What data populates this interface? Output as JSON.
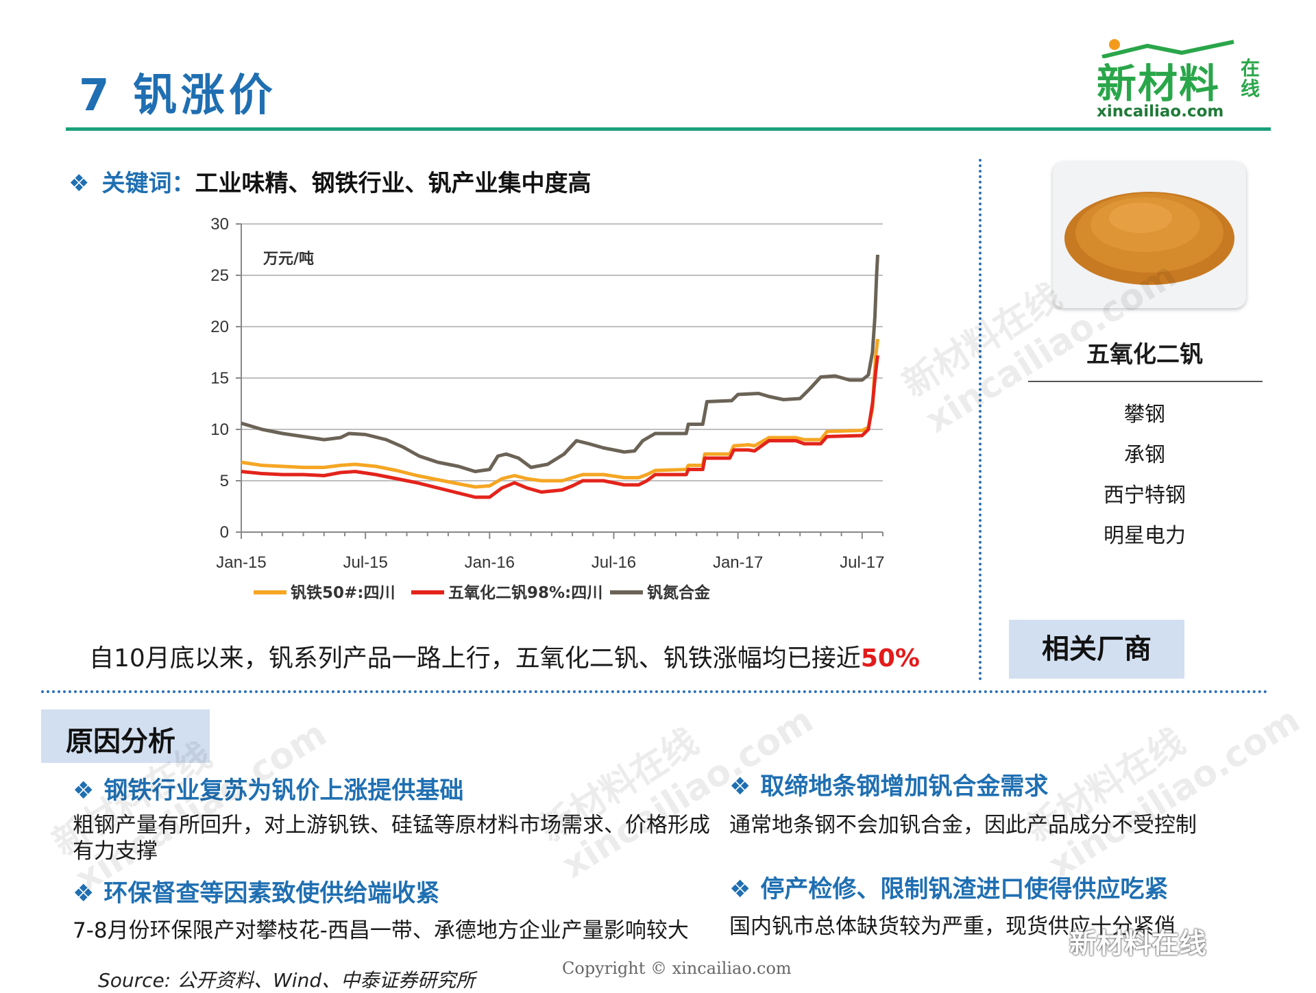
{
  "header": {
    "title": "7 钒涨价",
    "logo_main": "新材料",
    "logo_side": "在线",
    "logo_url": "xincailiao.com"
  },
  "keywords": {
    "bullet": "❖",
    "label": "关键词：",
    "text": "工业味精、钢铁行业、钒产业集中度高"
  },
  "caption": {
    "text": "自10月底以来，钒系列产品一路上行，五氧化二钒、钒铁涨幅均已接近",
    "highlight": "50%"
  },
  "product": {
    "name": "五氧化二钒",
    "makers": [
      "攀钢",
      "承钢",
      "西宁特钢",
      "明星电力"
    ],
    "makers_tag": "相关厂商"
  },
  "reasons": {
    "tag": "原因分析",
    "bullet": "❖",
    "items": [
      {
        "heading": "钢铁行业复苏为钒价上涨提供基础",
        "body": "粗钢产量有所回升，对上游钒铁、硅锰等原材料市场需求、价格形成有力支撑"
      },
      {
        "heading": "环保督查等因素致使供给端收紧",
        "body": "7-8月份环保限产对攀枝花-西昌一带、承德地方企业产量影响较大"
      },
      {
        "heading": "取缔地条钢增加钒合金需求",
        "body": "通常地条钢不会加钒合金，因此产品成分不受控制"
      },
      {
        "heading": "停产检修、限制钒渣进口使得供应吃紧",
        "body": "国内钒市总体缺货较为严重，现货供应十分紧俏"
      }
    ]
  },
  "footer": {
    "source": "Source: 公开资料、Wind、中泰证券研究所",
    "copyright": "Copyright © xincailiao.com",
    "wechat": "新材料在线"
  },
  "watermark": {
    "line1": "新材料在线",
    "line2": "xincailiao.com"
  },
  "chart_data": {
    "type": "line",
    "unit_label": "万元/吨",
    "ylim": [
      0,
      30
    ],
    "yticks": [
      0,
      5,
      10,
      15,
      20,
      25,
      30
    ],
    "x_tick_labels": [
      "Jan-15",
      "Jul-15",
      "Jan-16",
      "Jul-16",
      "Jan-17",
      "Jul-17"
    ],
    "x_tick_months": [
      0,
      6,
      12,
      18,
      24,
      30
    ],
    "x_range_months": [
      0,
      31
    ],
    "grid": true,
    "legend_position": "bottom",
    "colors": {
      "ferrovanadium": "#f5a623",
      "v2o5": "#e3241b",
      "vn": "#6b6356"
    },
    "series": [
      {
        "name": "钒铁50#:四川",
        "color": "#f5a623",
        "points": [
          [
            0,
            6.8
          ],
          [
            1,
            6.5
          ],
          [
            2,
            6.4
          ],
          [
            3,
            6.3
          ],
          [
            4,
            6.3
          ],
          [
            4.8,
            6.5
          ],
          [
            5.5,
            6.6
          ],
          [
            6.5,
            6.4
          ],
          [
            7.5,
            6.0
          ],
          [
            8.5,
            5.5
          ],
          [
            9.5,
            5.1
          ],
          [
            10.5,
            4.7
          ],
          [
            11.3,
            4.4
          ],
          [
            12,
            4.5
          ],
          [
            12.6,
            5.2
          ],
          [
            13.2,
            5.5
          ],
          [
            13.8,
            5.2
          ],
          [
            14.5,
            5.0
          ],
          [
            15.5,
            5.0
          ],
          [
            16,
            5.3
          ],
          [
            16.5,
            5.6
          ],
          [
            17.5,
            5.6
          ],
          [
            18.5,
            5.3
          ],
          [
            19.2,
            5.3
          ],
          [
            19.6,
            5.6
          ],
          [
            20,
            6.0
          ],
          [
            21.5,
            6.1
          ],
          [
            21.6,
            6.5
          ],
          [
            22.3,
            6.5
          ],
          [
            22.4,
            7.6
          ],
          [
            23.6,
            7.6
          ],
          [
            23.8,
            8.4
          ],
          [
            24.5,
            8.5
          ],
          [
            24.8,
            8.4
          ],
          [
            25.5,
            9.2
          ],
          [
            26.8,
            9.2
          ],
          [
            27.2,
            9.0
          ],
          [
            28,
            9.0
          ],
          [
            28.3,
            9.8
          ],
          [
            30,
            9.9
          ],
          [
            30.3,
            10.2
          ],
          [
            30.5,
            12.0
          ],
          [
            30.65,
            17.0
          ],
          [
            30.75,
            18.8
          ]
        ]
      },
      {
        "name": "五氧化二钒98%:四川",
        "color": "#e3241b",
        "points": [
          [
            0,
            5.9
          ],
          [
            1,
            5.7
          ],
          [
            2,
            5.6
          ],
          [
            3,
            5.6
          ],
          [
            4,
            5.5
          ],
          [
            4.8,
            5.8
          ],
          [
            5.5,
            5.9
          ],
          [
            6.5,
            5.6
          ],
          [
            7.5,
            5.2
          ],
          [
            8.5,
            4.8
          ],
          [
            9.5,
            4.3
          ],
          [
            10.5,
            3.8
          ],
          [
            11.3,
            3.4
          ],
          [
            12,
            3.4
          ],
          [
            12.6,
            4.3
          ],
          [
            13.2,
            4.8
          ],
          [
            13.8,
            4.3
          ],
          [
            14.5,
            3.9
          ],
          [
            15.5,
            4.1
          ],
          [
            16,
            4.5
          ],
          [
            16.5,
            5.0
          ],
          [
            17.5,
            5.0
          ],
          [
            18.5,
            4.6
          ],
          [
            19.2,
            4.6
          ],
          [
            19.6,
            5.0
          ],
          [
            20,
            5.6
          ],
          [
            21.5,
            5.6
          ],
          [
            21.6,
            6.1
          ],
          [
            22.3,
            6.1
          ],
          [
            22.4,
            7.2
          ],
          [
            23.6,
            7.2
          ],
          [
            23.8,
            8.0
          ],
          [
            24.5,
            8.0
          ],
          [
            24.8,
            7.9
          ],
          [
            25.5,
            8.9
          ],
          [
            26.8,
            8.9
          ],
          [
            27.2,
            8.6
          ],
          [
            28,
            8.6
          ],
          [
            28.3,
            9.3
          ],
          [
            30,
            9.4
          ],
          [
            30.3,
            10.0
          ],
          [
            30.5,
            12.5
          ],
          [
            30.65,
            15.5
          ],
          [
            30.75,
            17.2
          ]
        ]
      },
      {
        "name": "钒氮合金",
        "color": "#6b6356",
        "points": [
          [
            0,
            10.6
          ],
          [
            1,
            10.0
          ],
          [
            2,
            9.6
          ],
          [
            3,
            9.3
          ],
          [
            4,
            9.0
          ],
          [
            4.8,
            9.2
          ],
          [
            5.2,
            9.6
          ],
          [
            6,
            9.5
          ],
          [
            7,
            9.0
          ],
          [
            7.8,
            8.3
          ],
          [
            8.6,
            7.4
          ],
          [
            9.5,
            6.8
          ],
          [
            10.5,
            6.4
          ],
          [
            11.3,
            5.9
          ],
          [
            12,
            6.1
          ],
          [
            12.4,
            7.4
          ],
          [
            12.8,
            7.6
          ],
          [
            13.4,
            7.2
          ],
          [
            14,
            6.3
          ],
          [
            14.8,
            6.6
          ],
          [
            15.6,
            7.6
          ],
          [
            16.2,
            8.9
          ],
          [
            16.8,
            8.6
          ],
          [
            17.5,
            8.2
          ],
          [
            18.5,
            7.8
          ],
          [
            19,
            7.9
          ],
          [
            19.4,
            8.9
          ],
          [
            20,
            9.6
          ],
          [
            21.5,
            9.6
          ],
          [
            21.6,
            10.5
          ],
          [
            22.3,
            10.5
          ],
          [
            22.5,
            12.7
          ],
          [
            23.7,
            12.8
          ],
          [
            24,
            13.4
          ],
          [
            25,
            13.5
          ],
          [
            25.5,
            13.2
          ],
          [
            26.2,
            12.9
          ],
          [
            27,
            13.0
          ],
          [
            27.5,
            14.0
          ],
          [
            28,
            15.1
          ],
          [
            28.7,
            15.2
          ],
          [
            29.4,
            14.8
          ],
          [
            30,
            14.8
          ],
          [
            30.3,
            15.3
          ],
          [
            30.5,
            17.5
          ],
          [
            30.62,
            21.0
          ],
          [
            30.7,
            25.0
          ],
          [
            30.75,
            27.0
          ]
        ]
      }
    ]
  }
}
